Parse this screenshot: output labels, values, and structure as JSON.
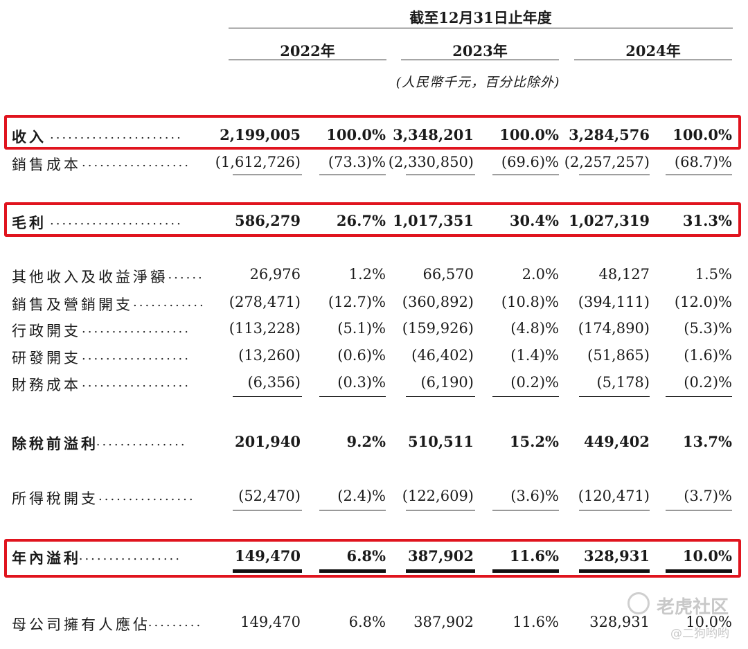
{
  "header": {
    "period_title": "截至12月31日止年度",
    "years": [
      "2022年",
      "2023年",
      "2024年"
    ],
    "units_note": "(人民幣千元，百分比除外)"
  },
  "rows": [
    {
      "label": "收入",
      "dots": "......................",
      "values": [
        "2,199,005",
        "100.0%",
        "3,348,201",
        "100.0%",
        "3,284,576",
        "100.0%"
      ]
    },
    {
      "label": "銷售成本",
      "dots": "..................",
      "values": [
        "(1,612,726)",
        "(73.3)%",
        "(2,330,850)",
        "(69.6)%",
        "(2,257,257)",
        "(68.7)%"
      ]
    },
    {
      "label": "毛利",
      "dots": "......................",
      "values": [
        "586,279",
        "26.7%",
        "1,017,351",
        "30.4%",
        "1,027,319",
        "31.3%"
      ]
    },
    {
      "label": "其他收入及收益淨額",
      "dots": "........",
      "values": [
        "26,976",
        "1.2%",
        "66,570",
        "2.0%",
        "48,127",
        "1.5%"
      ]
    },
    {
      "label": "銷售及營銷開支",
      "dots": "............",
      "values": [
        "(278,471)",
        "(12.7)%",
        "(360,892)",
        "(10.8)%",
        "(394,111)",
        "(12.0)%"
      ]
    },
    {
      "label": "行政開支",
      "dots": "..................",
      "values": [
        "(113,228)",
        "(5.1)%",
        "(159,926)",
        "(4.8)%",
        "(174,890)",
        "(5.3)%"
      ]
    },
    {
      "label": "研發開支",
      "dots": "..................",
      "values": [
        "(13,260)",
        "(0.6)%",
        "(46,402)",
        "(1.4)%",
        "(51,865)",
        "(1.6)%"
      ]
    },
    {
      "label": "財務成本",
      "dots": "..................",
      "values": [
        "(6,356)",
        "(0.3)%",
        "(6,190)",
        "(0.2)%",
        "(5,178)",
        "(0.2)%"
      ]
    },
    {
      "label": "除稅前溢利",
      "dots": "................",
      "values": [
        "201,940",
        "9.2%",
        "510,511",
        "15.2%",
        "449,402",
        "13.7%"
      ]
    },
    {
      "label": "所得稅開支",
      "dots": "................",
      "values": [
        "(52,470)",
        "(2.4)%",
        "(122,609)",
        "(3.6)%",
        "(120,471)",
        "(3.7)%"
      ]
    },
    {
      "label": "年內溢利",
      "dots": "..................",
      "values": [
        "149,470",
        "6.8%",
        "387,902",
        "11.6%",
        "328,931",
        "10.0%"
      ]
    },
    {
      "label": "母公司擁有人應佔",
      "dots": "..........",
      "values": [
        "149,470",
        "6.8%",
        "387,902",
        "11.6%",
        "328,931",
        "10.0%"
      ]
    }
  ],
  "watermark": {
    "brand": "老虎社区",
    "user": "@二狗哟哟"
  },
  "colors": {
    "highlight": "#e0141e"
  }
}
